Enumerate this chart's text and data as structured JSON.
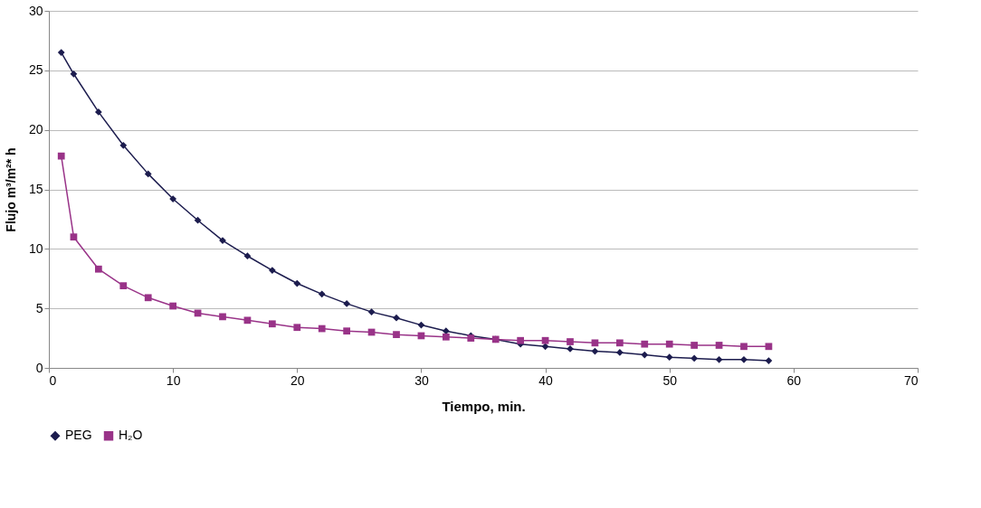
{
  "chart_data": {
    "type": "line",
    "xlabel": "Tiempo, min.",
    "ylabel": "Flujo m³/m²* h",
    "x": [
      1,
      2,
      4,
      6,
      8,
      10,
      12,
      14,
      16,
      18,
      20,
      22,
      24,
      26,
      28,
      30,
      32,
      34,
      36,
      38,
      40,
      42,
      44,
      46,
      48,
      50,
      52,
      54,
      56,
      58
    ],
    "series": [
      {
        "name": "PEG",
        "color": "#1c1c4e",
        "marker": "diamond",
        "values": [
          26.5,
          24.7,
          21.5,
          18.7,
          16.3,
          14.2,
          12.4,
          10.7,
          9.4,
          8.2,
          7.1,
          6.2,
          5.4,
          4.7,
          4.2,
          3.6,
          3.1,
          2.7,
          2.4,
          2.0,
          1.8,
          1.6,
          1.4,
          1.3,
          1.1,
          0.9,
          0.8,
          0.7,
          0.7,
          0.6
        ]
      },
      {
        "name": "H₂O",
        "color": "#993388",
        "marker": "square",
        "values": [
          17.8,
          11.0,
          8.3,
          6.9,
          5.9,
          5.2,
          4.6,
          4.3,
          4.0,
          3.7,
          3.4,
          3.3,
          3.1,
          3.0,
          2.8,
          2.7,
          2.6,
          2.5,
          2.4,
          2.3,
          2.3,
          2.2,
          2.1,
          2.1,
          2.0,
          2.0,
          1.9,
          1.9,
          1.8,
          1.8
        ]
      }
    ],
    "xlim": [
      0,
      70
    ],
    "xticks": [
      0,
      10,
      20,
      30,
      40,
      50,
      60,
      70
    ],
    "ylim": [
      0,
      30
    ],
    "yticks": [
      0,
      5,
      10,
      15,
      20,
      25,
      30
    ],
    "grid": "y",
    "legend": "bottom",
    "line_style": "solid"
  }
}
